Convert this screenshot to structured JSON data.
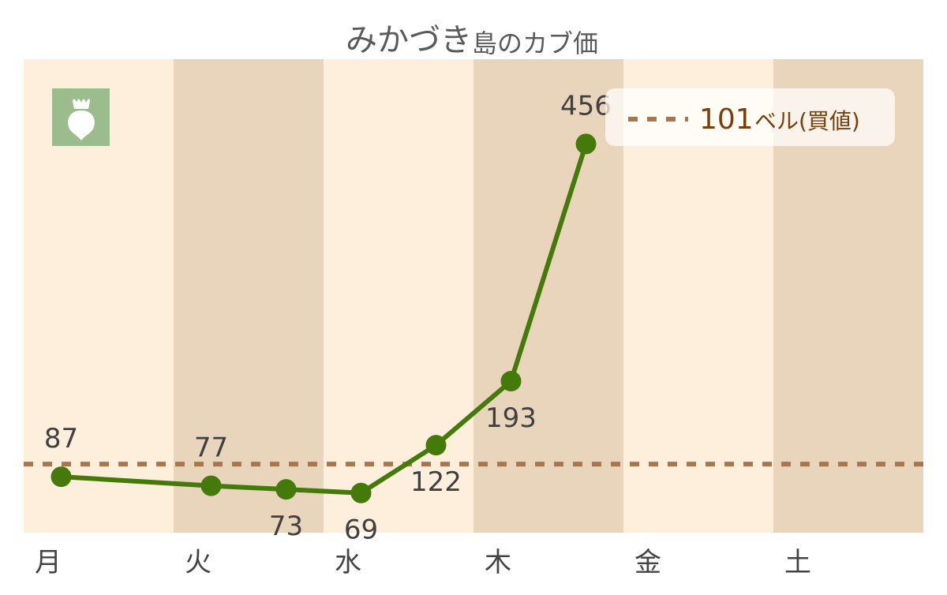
{
  "chart_data": {
    "type": "line",
    "title": "みかづき",
    "subtitle": "島のカブ価",
    "categories": [
      "月",
      "火",
      "水",
      "木",
      "金",
      "土"
    ],
    "x_slots": 12,
    "points": [
      {
        "slot": 0,
        "value": 87,
        "label": "87",
        "label_pos": "above"
      },
      {
        "slot": 2,
        "value": 77,
        "label": "77",
        "label_pos": "above"
      },
      {
        "slot": 3,
        "value": 73,
        "label": "73",
        "label_pos": "below"
      },
      {
        "slot": 4,
        "value": 69,
        "label": "69",
        "label_pos": "below"
      },
      {
        "slot": 5,
        "value": 122,
        "label": "122",
        "label_pos": "below"
      },
      {
        "slot": 6,
        "value": 193,
        "label": "193",
        "label_pos": "below"
      },
      {
        "slot": 7,
        "value": 456,
        "label": "456",
        "label_pos": "above"
      }
    ],
    "reference_line": {
      "value": 101,
      "label_number": "101",
      "label_unit": "ベル(買値)"
    },
    "ylim": [
      25,
      550
    ],
    "legend_position": "top-right",
    "colors": {
      "line": "#447a0a",
      "reference": "#a9774e",
      "band_light": "#fdefdc",
      "band_dark": "#e8d5bc",
      "icon_bg": "#9bbc8c"
    },
    "icon": "turnip-icon"
  }
}
